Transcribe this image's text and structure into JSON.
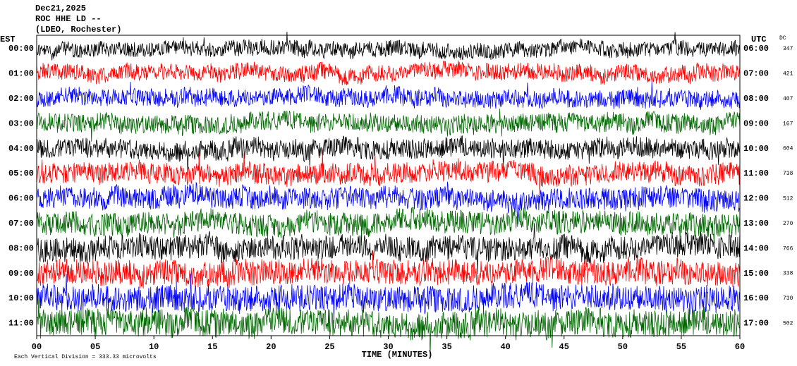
{
  "header": {
    "date": "Dec21,2025",
    "station": "ROC HHE LD --",
    "location": "(LDEO, Rochester)"
  },
  "left_axis": {
    "title": "EST",
    "labels": [
      "00:00",
      "01:00",
      "02:00",
      "03:00",
      "04:00",
      "05:00",
      "06:00",
      "07:00",
      "08:00",
      "09:00",
      "10:00",
      "11:00"
    ]
  },
  "right_axis": {
    "title": "UTC",
    "labels": [
      "06:00",
      "07:00",
      "08:00",
      "09:00",
      "10:00",
      "11:00",
      "12:00",
      "13:00",
      "14:00",
      "15:00",
      "16:00",
      "17:00"
    ]
  },
  "dc": {
    "title": "DC",
    "values": [
      "347",
      "421",
      "407",
      "167",
      "604",
      "738",
      "512",
      "270",
      "766",
      "338",
      "730",
      "502"
    ]
  },
  "x_axis": {
    "title": "TIME (MINUTES)",
    "labels": [
      "00",
      "05",
      "10",
      "15",
      "20",
      "25",
      "30",
      "35",
      "40",
      "45",
      "50",
      "55",
      "60"
    ]
  },
  "footer": {
    "scale_note": "Each Vertical Division =  333.33 microvolts"
  }
}
